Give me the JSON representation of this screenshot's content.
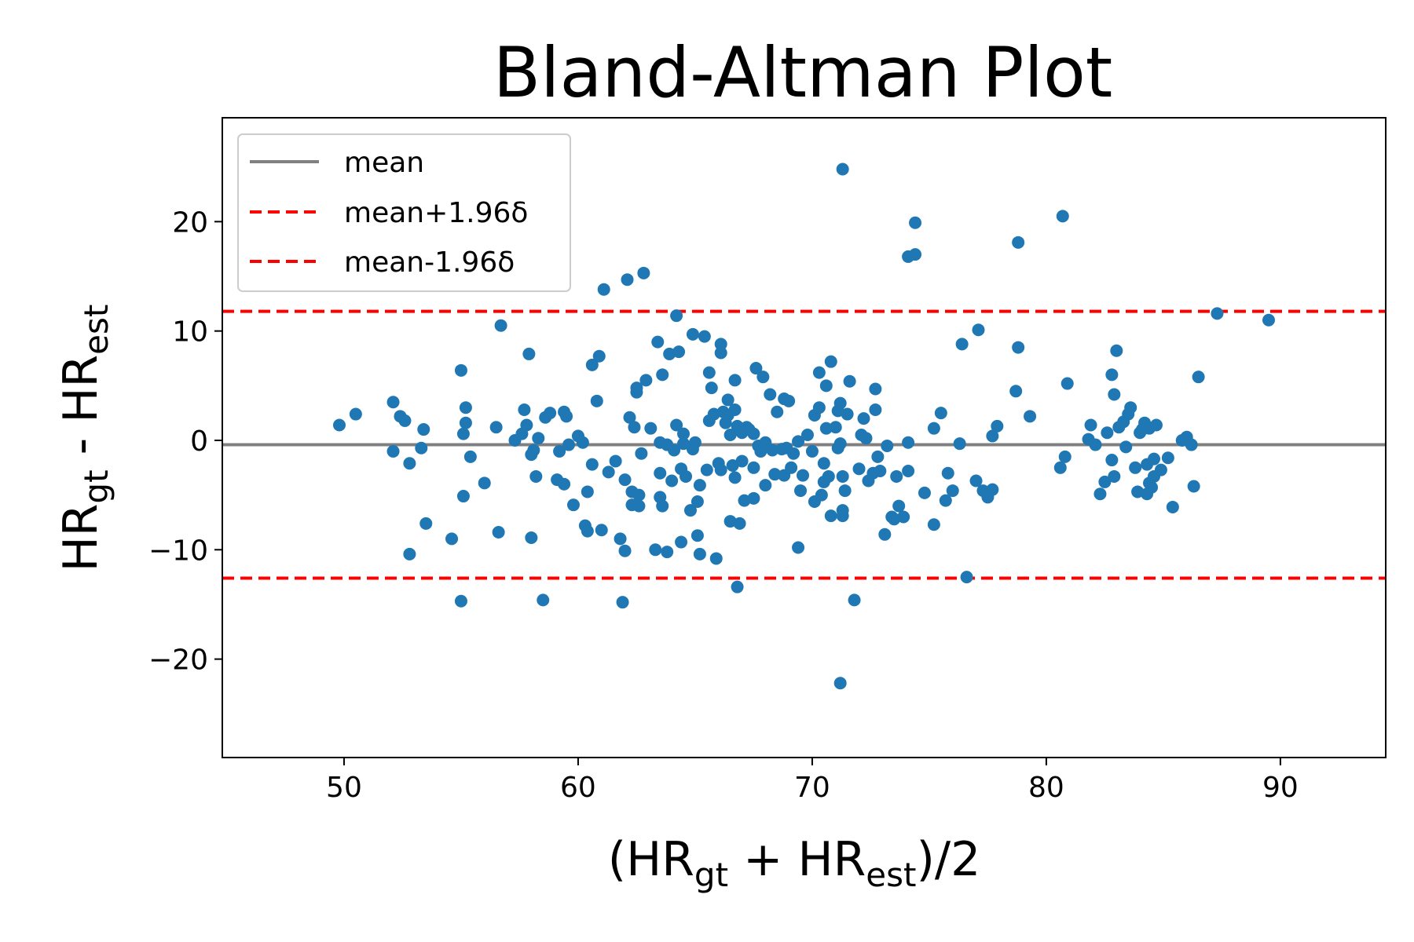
{
  "chart_data": {
    "type": "scatter",
    "title": "Bland-Altman Plot",
    "xlabel": {
      "pre": "(HR",
      "sub1": "gt",
      "mid": " + HR",
      "sub2": "est",
      "post": ")/2"
    },
    "ylabel": {
      "pre": "HR",
      "sub1": "gt",
      "mid": " - HR",
      "sub2": "est"
    },
    "xlim": [
      44.8,
      94.5
    ],
    "ylim": [
      -29,
      29.5
    ],
    "xticks": [
      50,
      60,
      70,
      80,
      90
    ],
    "yticks": [
      -20,
      -10,
      0,
      10,
      20
    ],
    "xtick_labels": [
      "50",
      "60",
      "70",
      "80",
      "90"
    ],
    "ytick_labels": [
      "−20",
      "−10",
      "0",
      "10",
      "20"
    ],
    "grid": false,
    "legend_position": "upper-left",
    "colors": {
      "points": "#1f77b4",
      "mean": "#808080",
      "limits": "#ff0000"
    },
    "lines": [
      {
        "name": "mean",
        "y": -0.4,
        "style": "solid",
        "color": "#808080"
      },
      {
        "name": "mean+1.96δ",
        "y": 11.8,
        "style": "dashed",
        "color": "#ff0000"
      },
      {
        "name": "mean-1.96δ",
        "y": -12.6,
        "style": "dashed",
        "color": "#ff0000"
      }
    ],
    "points": [
      [
        49.8,
        1.4
      ],
      [
        50.5,
        2.4
      ],
      [
        52.1,
        3.5
      ],
      [
        52.4,
        2.2
      ],
      [
        52.6,
        1.8
      ],
      [
        52.1,
        -1.0
      ],
      [
        52.8,
        -2.1
      ],
      [
        53.3,
        -0.7
      ],
      [
        53.4,
        1.0
      ],
      [
        53.5,
        -7.6
      ],
      [
        52.8,
        -10.4
      ],
      [
        54.6,
        -9.0
      ],
      [
        55.0,
        6.4
      ],
      [
        55.1,
        0.6
      ],
      [
        55.2,
        3.0
      ],
      [
        55.2,
        1.6
      ],
      [
        55.4,
        -1.5
      ],
      [
        55.1,
        -5.1
      ],
      [
        55.0,
        -14.7
      ],
      [
        56.0,
        -3.9
      ],
      [
        56.5,
        1.2
      ],
      [
        56.7,
        10.5
      ],
      [
        56.6,
        -8.4
      ],
      [
        57.3,
        0.0
      ],
      [
        57.6,
        0.6
      ],
      [
        57.7,
        2.8
      ],
      [
        57.8,
        1.4
      ],
      [
        58.0,
        -1.3
      ],
      [
        58.1,
        -0.9
      ],
      [
        57.9,
        7.9
      ],
      [
        58.0,
        -8.9
      ],
      [
        58.3,
        0.2
      ],
      [
        58.2,
        -3.3
      ],
      [
        58.6,
        2.1
      ],
      [
        58.8,
        2.5
      ],
      [
        58.5,
        -14.6
      ],
      [
        59.1,
        -3.6
      ],
      [
        59.2,
        -1.0
      ],
      [
        59.4,
        -4.0
      ],
      [
        59.4,
        2.6
      ],
      [
        59.5,
        2.2
      ],
      [
        59.6,
        -0.4
      ],
      [
        59.8,
        -5.9
      ],
      [
        60.0,
        0.4
      ],
      [
        60.2,
        -0.2
      ],
      [
        60.3,
        -7.8
      ],
      [
        60.4,
        -8.3
      ],
      [
        60.4,
        -4.7
      ],
      [
        60.6,
        6.9
      ],
      [
        60.8,
        3.6
      ],
      [
        60.6,
        -2.2
      ],
      [
        60.9,
        7.7
      ],
      [
        61.0,
        -8.2
      ],
      [
        61.1,
        13.8
      ],
      [
        61.3,
        -2.9
      ],
      [
        61.6,
        -1.9
      ],
      [
        61.8,
        -9.0
      ],
      [
        61.9,
        -14.8
      ],
      [
        62.0,
        -10.1
      ],
      [
        62.0,
        -3.6
      ],
      [
        62.1,
        14.7
      ],
      [
        62.2,
        2.1
      ],
      [
        62.3,
        -4.7
      ],
      [
        62.3,
        -5.9
      ],
      [
        62.4,
        1.2
      ],
      [
        62.5,
        4.8
      ],
      [
        62.5,
        4.4
      ],
      [
        62.6,
        -5.0
      ],
      [
        62.6,
        -6.0
      ],
      [
        62.7,
        -1.2
      ],
      [
        62.8,
        15.3
      ],
      [
        62.9,
        5.5
      ],
      [
        63.1,
        1.1
      ],
      [
        63.3,
        -10.0
      ],
      [
        63.4,
        9.0
      ],
      [
        63.5,
        -0.2
      ],
      [
        63.5,
        -3.0
      ],
      [
        63.5,
        -5.2
      ],
      [
        63.6,
        -6.0
      ],
      [
        63.6,
        6.0
      ],
      [
        63.8,
        -10.2
      ],
      [
        63.8,
        -0.4
      ],
      [
        63.9,
        7.9
      ],
      [
        64.0,
        -3.7
      ],
      [
        64.1,
        -0.9
      ],
      [
        64.2,
        1.4
      ],
      [
        64.2,
        11.4
      ],
      [
        64.3,
        8.1
      ],
      [
        64.4,
        -2.6
      ],
      [
        64.4,
        -9.3
      ],
      [
        64.5,
        0.6
      ],
      [
        64.5,
        -0.3
      ],
      [
        64.6,
        -3.3
      ],
      [
        64.8,
        -6.4
      ],
      [
        64.9,
        -0.8
      ],
      [
        64.9,
        9.7
      ],
      [
        65.0,
        -0.2
      ],
      [
        65.1,
        -5.6
      ],
      [
        65.1,
        -8.7
      ],
      [
        65.2,
        -4.1
      ],
      [
        65.2,
        -10.4
      ],
      [
        65.4,
        9.5
      ],
      [
        65.5,
        -2.7
      ],
      [
        65.6,
        6.2
      ],
      [
        65.6,
        1.8
      ],
      [
        65.7,
        4.8
      ],
      [
        65.8,
        2.4
      ],
      [
        65.9,
        -10.8
      ],
      [
        66.0,
        -2.1
      ],
      [
        66.1,
        -2.7
      ],
      [
        66.1,
        8.8
      ],
      [
        66.1,
        8.0
      ],
      [
        66.2,
        2.6
      ],
      [
        66.3,
        1.6
      ],
      [
        66.4,
        2.3
      ],
      [
        66.4,
        3.7
      ],
      [
        66.5,
        0.5
      ],
      [
        66.5,
        -7.4
      ],
      [
        66.6,
        -2.3
      ],
      [
        66.7,
        -3.4
      ],
      [
        66.7,
        5.5
      ],
      [
        66.7,
        2.8
      ],
      [
        66.8,
        1.3
      ],
      [
        66.8,
        -13.4
      ],
      [
        66.9,
        -7.6
      ],
      [
        67.0,
        -1.9
      ],
      [
        67.0,
        0.7
      ],
      [
        67.1,
        -5.5
      ],
      [
        67.2,
        1.2
      ],
      [
        67.3,
        1.0
      ],
      [
        67.5,
        0.6
      ],
      [
        67.5,
        -2.5
      ],
      [
        67.5,
        -5.3
      ],
      [
        67.6,
        6.6
      ],
      [
        67.7,
        -0.5
      ],
      [
        67.8,
        -1.0
      ],
      [
        67.9,
        5.8
      ],
      [
        68.0,
        -0.2
      ],
      [
        68.0,
        -4.1
      ],
      [
        68.2,
        4.2
      ],
      [
        68.3,
        -0.9
      ],
      [
        68.4,
        -3.1
      ],
      [
        68.5,
        2.6
      ],
      [
        68.7,
        -0.8
      ],
      [
        68.8,
        -3.2
      ],
      [
        68.8,
        3.8
      ],
      [
        68.9,
        -0.7
      ],
      [
        69.0,
        3.6
      ],
      [
        69.1,
        -2.5
      ],
      [
        69.2,
        -1.2
      ],
      [
        69.4,
        -0.1
      ],
      [
        69.4,
        -9.8
      ],
      [
        69.5,
        -4.6
      ],
      [
        69.6,
        -3.2
      ],
      [
        69.8,
        0.5
      ],
      [
        70.0,
        -1.0
      ],
      [
        70.1,
        2.3
      ],
      [
        70.1,
        -5.6
      ],
      [
        70.3,
        3.0
      ],
      [
        70.3,
        6.2
      ],
      [
        70.4,
        -5.0
      ],
      [
        70.5,
        -2.1
      ],
      [
        70.5,
        -3.8
      ],
      [
        70.6,
        5.0
      ],
      [
        70.6,
        1.1
      ],
      [
        70.7,
        -3.3
      ],
      [
        70.8,
        -6.9
      ],
      [
        70.8,
        7.2
      ],
      [
        71.0,
        1.2
      ],
      [
        71.1,
        -0.7
      ],
      [
        71.1,
        2.7
      ],
      [
        71.2,
        -0.3
      ],
      [
        71.2,
        3.4
      ],
      [
        71.3,
        -6.4
      ],
      [
        71.3,
        -6.9
      ],
      [
        71.3,
        -3.3
      ],
      [
        71.4,
        -4.6
      ],
      [
        71.3,
        24.8
      ],
      [
        71.2,
        -22.2
      ],
      [
        71.5,
        2.4
      ],
      [
        71.6,
        5.4
      ],
      [
        71.8,
        -14.6
      ],
      [
        72.0,
        -2.6
      ],
      [
        72.1,
        0.5
      ],
      [
        72.2,
        2.0
      ],
      [
        72.3,
        0.2
      ],
      [
        72.4,
        -3.7
      ],
      [
        72.6,
        -3.0
      ],
      [
        72.7,
        4.7
      ],
      [
        72.7,
        2.8
      ],
      [
        72.8,
        -1.5
      ],
      [
        72.9,
        -2.8
      ],
      [
        73.1,
        -8.6
      ],
      [
        73.2,
        -0.5
      ],
      [
        73.4,
        -7.0
      ],
      [
        73.5,
        -7.2
      ],
      [
        73.6,
        -3.3
      ],
      [
        73.7,
        -6.0
      ],
      [
        73.9,
        -7.0
      ],
      [
        74.1,
        -2.8
      ],
      [
        74.1,
        -0.2
      ],
      [
        74.1,
        16.8
      ],
      [
        74.4,
        17.0
      ],
      [
        74.4,
        19.9
      ],
      [
        74.8,
        -4.8
      ],
      [
        75.2,
        -7.7
      ],
      [
        75.2,
        1.1
      ],
      [
        75.5,
        2.5
      ],
      [
        75.7,
        -5.5
      ],
      [
        75.8,
        -3.0
      ],
      [
        76.0,
        -4.6
      ],
      [
        76.3,
        -0.3
      ],
      [
        76.4,
        8.8
      ],
      [
        76.6,
        -12.5
      ],
      [
        77.0,
        -3.7
      ],
      [
        77.1,
        10.1
      ],
      [
        77.3,
        -4.6
      ],
      [
        77.5,
        -5.2
      ],
      [
        77.7,
        -4.5
      ],
      [
        77.7,
        0.4
      ],
      [
        77.9,
        1.3
      ],
      [
        78.7,
        4.5
      ],
      [
        78.8,
        8.5
      ],
      [
        78.8,
        18.1
      ],
      [
        79.3,
        2.2
      ],
      [
        80.6,
        -2.5
      ],
      [
        80.8,
        -1.5
      ],
      [
        80.7,
        20.5
      ],
      [
        80.9,
        5.2
      ],
      [
        81.8,
        0.1
      ],
      [
        81.9,
        1.4
      ],
      [
        82.1,
        -0.4
      ],
      [
        82.3,
        -4.9
      ],
      [
        82.5,
        -3.8
      ],
      [
        82.6,
        0.7
      ],
      [
        82.8,
        -1.8
      ],
      [
        82.8,
        6.0
      ],
      [
        82.9,
        4.2
      ],
      [
        82.9,
        -3.3
      ],
      [
        83.0,
        8.2
      ],
      [
        83.1,
        1.2
      ],
      [
        83.3,
        1.7
      ],
      [
        83.4,
        -0.6
      ],
      [
        83.5,
        2.4
      ],
      [
        83.6,
        3.0
      ],
      [
        83.8,
        -2.5
      ],
      [
        83.9,
        -4.7
      ],
      [
        84.0,
        0.7
      ],
      [
        84.1,
        1.0
      ],
      [
        84.2,
        1.6
      ],
      [
        84.3,
        -2.2
      ],
      [
        84.3,
        -4.9
      ],
      [
        84.4,
        1.1
      ],
      [
        84.4,
        -3.9
      ],
      [
        84.5,
        -4.3
      ],
      [
        84.6,
        -1.7
      ],
      [
        84.6,
        -3.3
      ],
      [
        84.7,
        1.4
      ],
      [
        84.9,
        -2.7
      ],
      [
        85.2,
        -1.6
      ],
      [
        85.4,
        -6.1
      ],
      [
        85.8,
        0.0
      ],
      [
        86.0,
        0.3
      ],
      [
        86.2,
        -0.4
      ],
      [
        86.3,
        -4.2
      ],
      [
        86.5,
        5.8
      ],
      [
        87.3,
        11.6
      ],
      [
        89.5,
        11.0
      ]
    ]
  }
}
